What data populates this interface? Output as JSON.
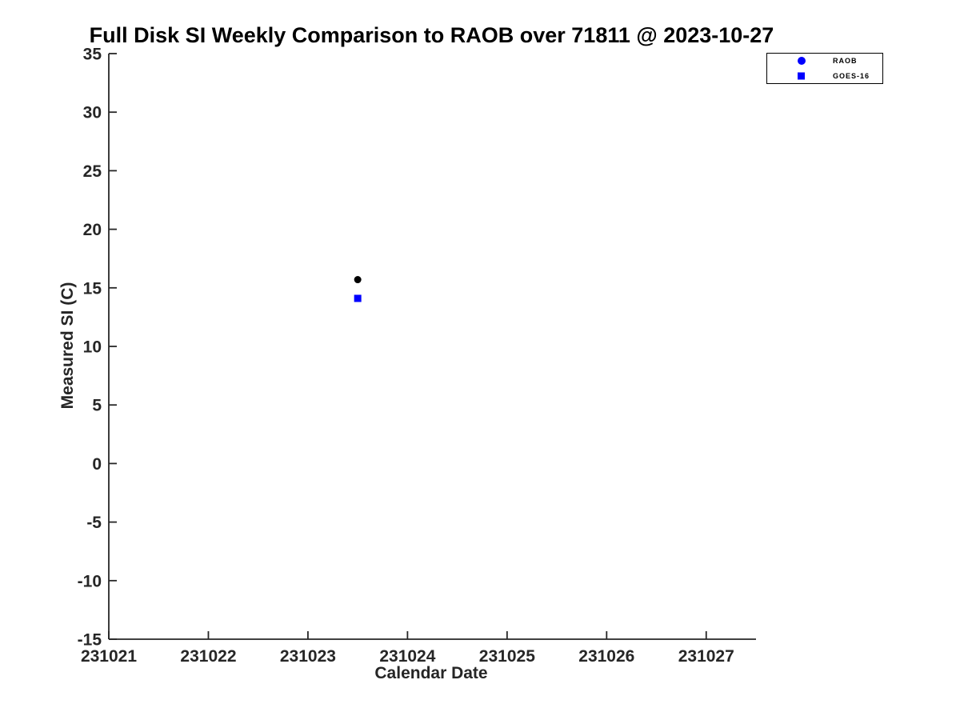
{
  "title": "Full Disk SI Weekly Comparison to RAOB over 71811 @ 2023-10-27",
  "colors": {
    "background": "#ffffff",
    "title_text": "#000000",
    "axis": "#262626",
    "axis_text": "#262626",
    "marker_blue": "#0000ff",
    "raob_point_black": "#000000",
    "legend_border": "#000000"
  },
  "legend": {
    "position": "upper-right-outside-axes",
    "border": true,
    "entries": [
      {
        "label": "RAOB",
        "marker": "circle",
        "color": "#0000ff"
      },
      {
        "label": "GOES-16",
        "marker": "square",
        "color": "#0000ff"
      }
    ]
  },
  "chart_data": {
    "type": "scatter",
    "title": "Full Disk SI Weekly Comparison to RAOB over 71811 @ 2023-10-27",
    "xlabel": "Calendar Date",
    "ylabel": "Measured SI (C)",
    "xlim": [
      231021,
      231027.5
    ],
    "ylim": [
      -15,
      35
    ],
    "xticks": [
      231021,
      231022,
      231023,
      231024,
      231025,
      231026,
      231027
    ],
    "yticks": [
      -15,
      -10,
      -5,
      0,
      5,
      10,
      15,
      20,
      25,
      30,
      35
    ],
    "grid": false,
    "box": false,
    "legend_position": "upper right (outside axes)",
    "series": [
      {
        "name": "RAOB",
        "marker": "circle",
        "point_color": "#000000",
        "legend_marker_color": "#0000ff",
        "points": [
          {
            "x": 231023.5,
            "y": 15.7
          }
        ]
      },
      {
        "name": "GOES-16",
        "marker": "square",
        "point_color": "#0000ff",
        "legend_marker_color": "#0000ff",
        "points": [
          {
            "x": 231023.5,
            "y": 14.1
          }
        ]
      }
    ]
  }
}
